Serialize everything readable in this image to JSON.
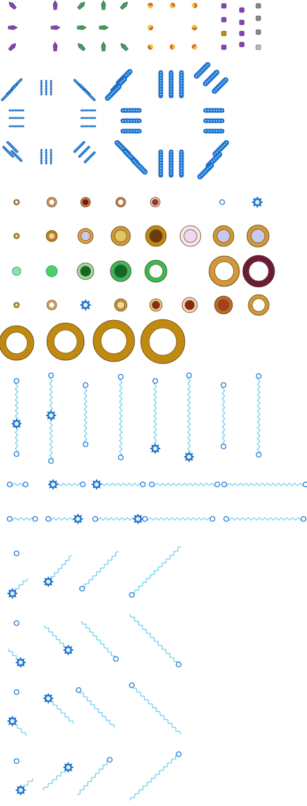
{
  "sheet": {
    "description_name": "sprite-sheet",
    "palette": {
      "purple": "#8a3fc0",
      "green": "#3aa35a",
      "orange": "#d86a1c",
      "blue": "#1f7ad8",
      "light_blue": "#6fd0ee",
      "lavender": "#c8c8f0",
      "gold": "#c08a10",
      "brown": "#7a2a2a",
      "maroon": "#6a1a3a",
      "dark_green": "#0e6a2a"
    },
    "sections": [
      {
        "name": "arrow-sprites",
        "icon": "arrow-icon"
      },
      {
        "name": "half-circle-sprites",
        "icon": "half-circle-icon"
      },
      {
        "name": "small-gem-sprites",
        "icon": "gem-icon"
      },
      {
        "name": "rotated-bar-sprites",
        "icon": "bar-icon"
      },
      {
        "name": "ring-sprites",
        "icon": "ring-icon"
      },
      {
        "name": "lightning-sprites",
        "icon": "lightning-icon"
      }
    ]
  }
}
